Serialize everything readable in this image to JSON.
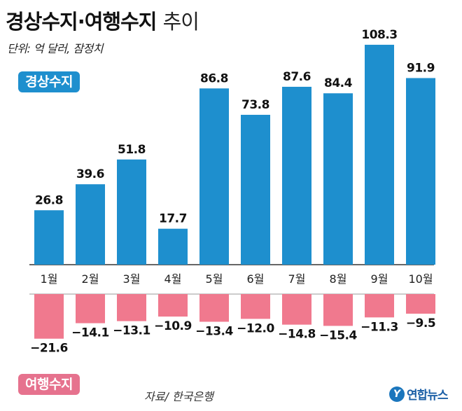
{
  "title": {
    "bold": "경상수지·여행수지",
    "light": "추이"
  },
  "unit": "단위: 억 달러, 잠정치",
  "legend": {
    "current": "경상수지",
    "travel": "여행수지"
  },
  "source": "자료/ 한국은행",
  "logo": {
    "mark": "Y",
    "text": "연합뉴스"
  },
  "colors": {
    "current": "#1e8fce",
    "travel": "#f0798e",
    "baseline": "#333333"
  },
  "chart_data": {
    "type": "bar",
    "title": "경상수지·여행수지 추이",
    "ylabel": "억 달러",
    "categories": [
      "1월",
      "2월",
      "3월",
      "4월",
      "5월",
      "6월",
      "7월",
      "8월",
      "9월",
      "10월"
    ],
    "series": [
      {
        "name": "경상수지",
        "values": [
          26.8,
          39.6,
          51.8,
          17.7,
          86.8,
          73.8,
          87.6,
          84.4,
          108.3,
          91.9
        ]
      },
      {
        "name": "여행수지",
        "values": [
          -21.6,
          -14.1,
          -13.1,
          -10.9,
          -13.4,
          -12.0,
          -14.8,
          -15.4,
          -11.3,
          -9.5
        ]
      }
    ],
    "value_labels": {
      "current": [
        "26.8",
        "39.6",
        "51.8",
        "17.7",
        "86.8",
        "73.8",
        "87.6",
        "84.4",
        "108.3",
        "91.9"
      ],
      "travel": [
        "−21.6",
        "−14.1",
        "−13.1",
        "−10.9",
        "−13.4",
        "−12.0",
        "−14.8",
        "−15.4",
        "−11.3",
        "−9.5"
      ]
    }
  }
}
